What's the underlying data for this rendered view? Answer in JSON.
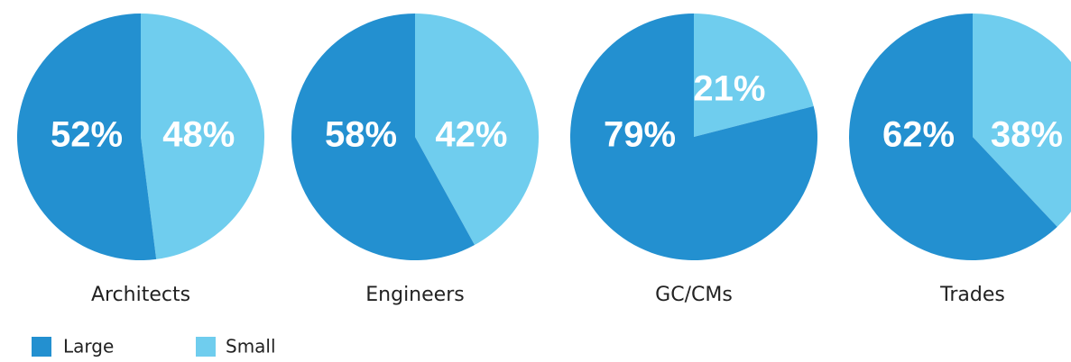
{
  "chart_data": [
    {
      "type": "pie",
      "title": "Architects",
      "categories": [
        "Large",
        "Small"
      ],
      "values": [
        52,
        48
      ],
      "value_labels": [
        "52%",
        "48%"
      ],
      "colors": [
        "#2390d0",
        "#6fcdee"
      ]
    },
    {
      "type": "pie",
      "title": "Engineers",
      "categories": [
        "Large",
        "Small"
      ],
      "values": [
        58,
        42
      ],
      "value_labels": [
        "58%",
        "42%"
      ],
      "colors": [
        "#2390d0",
        "#6fcdee"
      ]
    },
    {
      "type": "pie",
      "title": "GC/CMs",
      "categories": [
        "Large",
        "Small"
      ],
      "values": [
        79,
        21
      ],
      "value_labels": [
        "79%",
        "21%"
      ],
      "colors": [
        "#2390d0",
        "#6fcdee"
      ]
    },
    {
      "type": "pie",
      "title": "Trades",
      "categories": [
        "Large",
        "Small"
      ],
      "values": [
        62,
        38
      ],
      "value_labels": [
        "62%",
        "38%"
      ],
      "colors": [
        "#2390d0",
        "#6fcdee"
      ]
    }
  ]
}
